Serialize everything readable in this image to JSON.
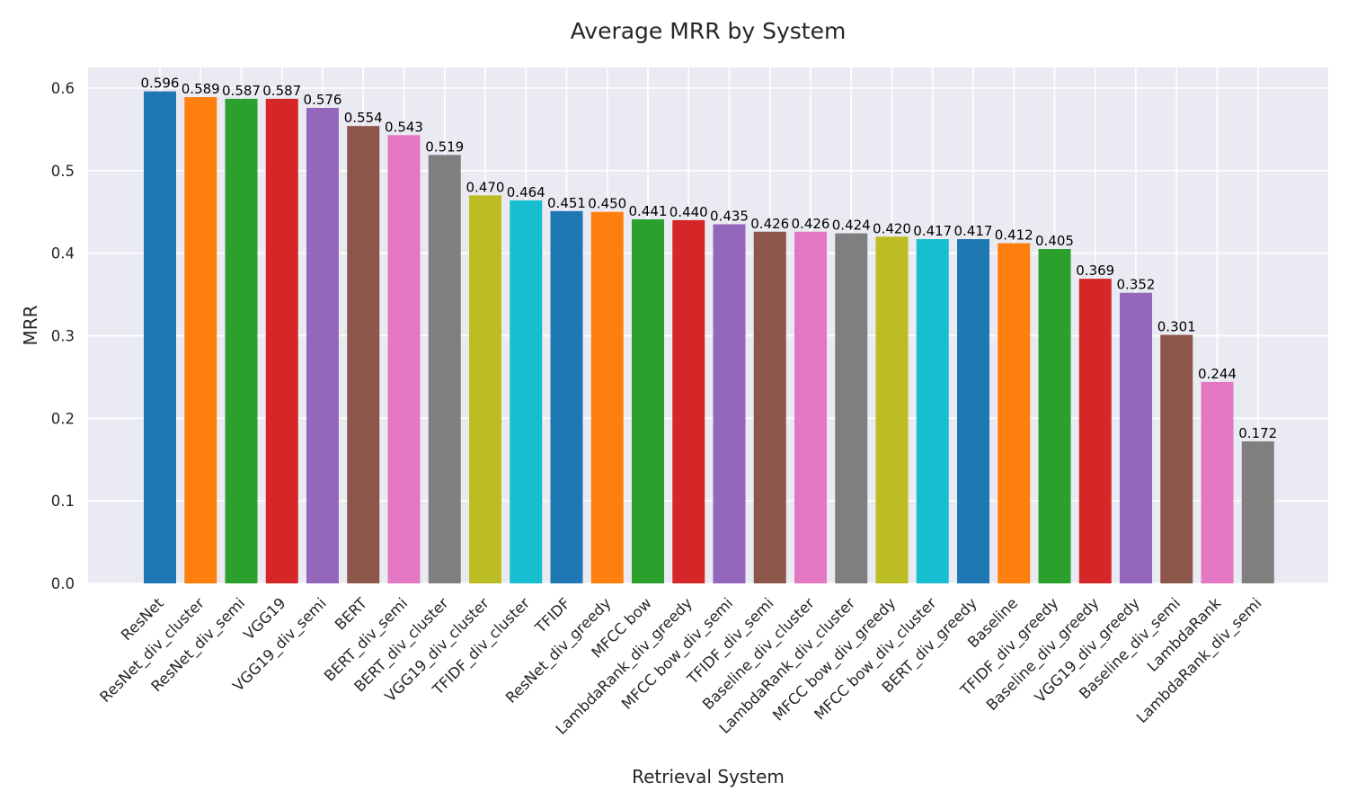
{
  "chart_data": {
    "type": "bar",
    "title": "Average MRR by System",
    "xlabel": "Retrieval System",
    "ylabel": "MRR",
    "ylim": [
      0,
      0.625
    ],
    "yticks": [
      "0.0",
      "0.1",
      "0.2",
      "0.3",
      "0.4",
      "0.5",
      "0.6"
    ],
    "grid": true,
    "legend": "none",
    "categories": [
      "ResNet",
      "ResNet_div_cluster",
      "ResNet_div_semi",
      "VGG19",
      "VGG19_div_semi",
      "BERT",
      "BERT_div_semi",
      "BERT_div_cluster",
      "VGG19_div_cluster",
      "TFIDF_div_cluster",
      "TFIDF",
      "ResNet_div_greedy",
      "MFCC bow",
      "LambdaRank_div_greedy",
      "MFCC bow_div_semi",
      "TFIDF_div_semi",
      "Baseline_div_cluster",
      "LambdaRank_div_cluster",
      "MFCC bow_div_greedy",
      "MFCC bow_div_cluster",
      "BERT_div_greedy",
      "Baseline",
      "TFIDF_div_greedy",
      "Baseline_div_greedy",
      "VGG19_div_greedy",
      "Baseline_div_semi",
      "LambdaRank",
      "LambdaRank_div_semi"
    ],
    "values": [
      0.596,
      0.589,
      0.587,
      0.587,
      0.576,
      0.554,
      0.543,
      0.519,
      0.47,
      0.464,
      0.451,
      0.45,
      0.441,
      0.44,
      0.435,
      0.426,
      0.426,
      0.424,
      0.42,
      0.417,
      0.417,
      0.412,
      0.405,
      0.369,
      0.352,
      0.301,
      0.244,
      0.172
    ],
    "value_labels": [
      "0.596",
      "0.589",
      "0.587",
      "0.587",
      "0.576",
      "0.554",
      "0.543",
      "0.519",
      "0.470",
      "0.464",
      "0.451",
      "0.450",
      "0.441",
      "0.440",
      "0.435",
      "0.426",
      "0.426",
      "0.424",
      "0.420",
      "0.417",
      "0.417",
      "0.412",
      "0.405",
      "0.369",
      "0.352",
      "0.301",
      "0.244",
      "0.172"
    ],
    "colors": [
      "#1f77b4",
      "#ff7f0e",
      "#2ca02c",
      "#d62728",
      "#9467bd",
      "#8c564b",
      "#e377c2",
      "#7f7f7f",
      "#bcbd22",
      "#17becf"
    ],
    "plot_background": "#eaeaf2",
    "grid_color": "#ffffff"
  }
}
